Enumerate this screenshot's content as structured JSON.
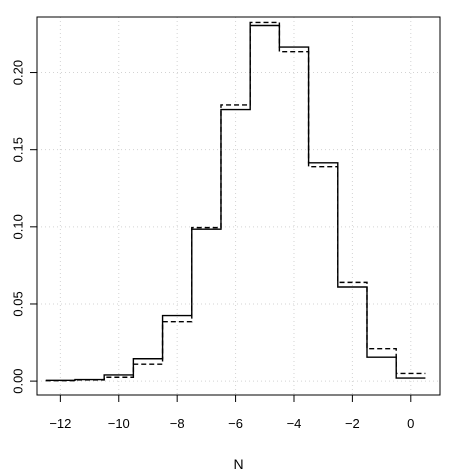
{
  "chart_data": {
    "type": "line",
    "title": "",
    "xlabel": "N",
    "ylabel": "",
    "xlim": [
      -12.8,
      1.0
    ],
    "ylim": [
      -0.009,
      0.236
    ],
    "grid": true,
    "legend": "none",
    "x_ticks": [
      -12,
      -10,
      -8,
      -6,
      -4,
      -2,
      0
    ],
    "x_tick_labels": [
      "−12",
      "−10",
      "−8",
      "−6",
      "−4",
      "−2",
      "0"
    ],
    "y_ticks": [
      0.0,
      0.05,
      0.1,
      0.15,
      0.2
    ],
    "y_tick_labels": [
      "0.00",
      "0.05",
      "0.10",
      "0.15",
      "0.20"
    ],
    "bin_edges": [
      -12.5,
      -11.5,
      -10.5,
      -9.5,
      -8.5,
      -7.5,
      -6.5,
      -5.5,
      -4.5,
      -3.5,
      -2.5,
      -1.5,
      -0.5,
      0.5
    ],
    "series": [
      {
        "style": "solid",
        "values": [
          0.0005,
          0.001,
          0.004,
          0.0145,
          0.0425,
          0.0985,
          0.176,
          0.2305,
          0.2165,
          0.1415,
          0.061,
          0.0155,
          0.002
        ]
      },
      {
        "style": "dashed",
        "values": [
          0.0003,
          0.0008,
          0.0025,
          0.011,
          0.0385,
          0.0995,
          0.179,
          0.2325,
          0.2135,
          0.139,
          0.064,
          0.021,
          0.005
        ]
      }
    ],
    "colors": {
      "line": "#000000",
      "grid": "#d3d3d3",
      "box": "#000000"
    }
  }
}
